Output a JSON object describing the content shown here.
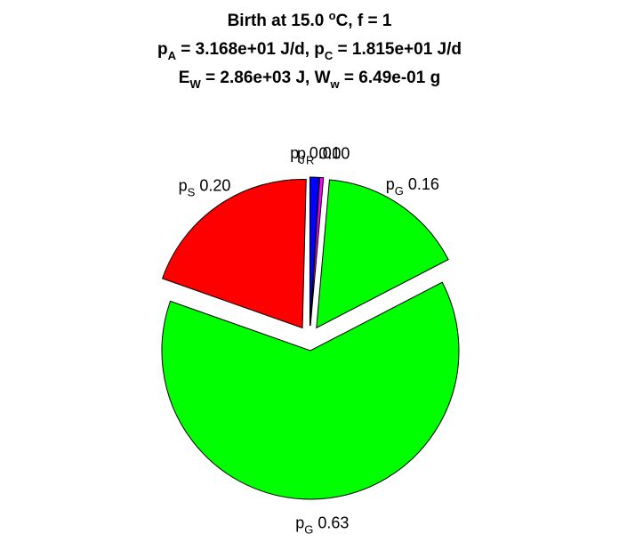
{
  "title": {
    "line1": {
      "pre": "Birth at 15.0 ",
      "sup": "o",
      "post": "C, f = 1"
    },
    "line2": {
      "a_sym": "p",
      "a_sub": "A",
      "a_val": " = 3.168e+01 J/d, ",
      "c_sym": "p",
      "c_sub": "C",
      "c_val": " = 1.815e+01 J/d"
    },
    "line3": {
      "e_sym": "E",
      "e_sub": "W",
      "e_val": " = 2.86e+03 J, ",
      "w_sym": "W",
      "w_sub": "w",
      "w_val": " = 6.49e-01 g"
    }
  },
  "chart_data": {
    "type": "pie",
    "start": "top",
    "direction": "clockwise",
    "exploded": true,
    "slices": [
      {
        "sym": "p",
        "sub": "J",
        "value": 0.01,
        "text": "0.01",
        "color": "#0000ff"
      },
      {
        "sym": "p",
        "sub": "R",
        "value": 0.0,
        "text": "0.00",
        "color": "#ff00ff"
      },
      {
        "sym": "p",
        "sub": "G",
        "value": 0.16,
        "text": "0.16",
        "color": "#00ff00"
      },
      {
        "sym": "p",
        "sub": "G",
        "value": 0.63,
        "text": "0.63",
        "color": "#00ff00"
      },
      {
        "sym": "p",
        "sub": "S",
        "value": 0.2,
        "text": "0.20",
        "color": "#ff0000"
      }
    ]
  }
}
